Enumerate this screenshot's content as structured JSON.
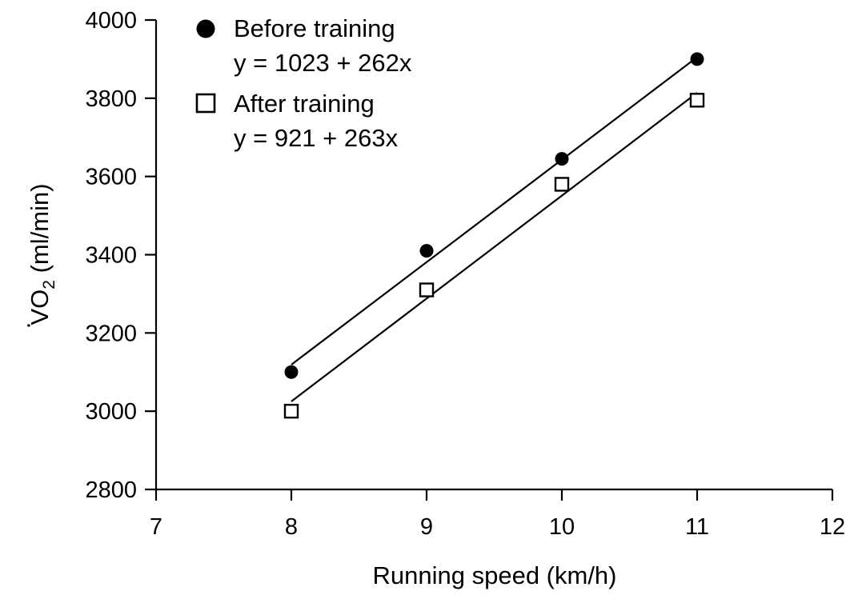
{
  "chart_data": {
    "type": "scatter",
    "xlabel": "Running speed (km/h)",
    "ylabel_main": "V",
    "ylabel_dot": "·",
    "ylabel_o": "O",
    "ylabel_sub": "2",
    "ylabel_units": " (ml/min)",
    "xlim": [
      7,
      12
    ],
    "ylim": [
      2800,
      4000
    ],
    "xticks": [
      "7",
      "8",
      "9",
      "10",
      "11",
      "12"
    ],
    "yticks": [
      "2800",
      "3000",
      "3200",
      "3400",
      "3600",
      "3800",
      "4000"
    ],
    "grid": false,
    "legend_position": "top-left",
    "series": [
      {
        "name": "Before training",
        "equation": "y = 1023 + 262x",
        "marker": "filled-circle",
        "fit": {
          "intercept": 1023,
          "slope": 262
        },
        "points": [
          {
            "x": 8,
            "y": 3100
          },
          {
            "x": 9,
            "y": 3410
          },
          {
            "x": 10,
            "y": 3645
          },
          {
            "x": 11,
            "y": 3900
          }
        ]
      },
      {
        "name": "After training",
        "equation": "y = 921 + 263x",
        "marker": "open-square",
        "fit": {
          "intercept": 921,
          "slope": 263
        },
        "points": [
          {
            "x": 8,
            "y": 3000
          },
          {
            "x": 9,
            "y": 3310
          },
          {
            "x": 10,
            "y": 3580
          },
          {
            "x": 11,
            "y": 3795
          }
        ]
      }
    ]
  },
  "colors": {
    "ink": "#000000",
    "background": "#ffffff"
  }
}
